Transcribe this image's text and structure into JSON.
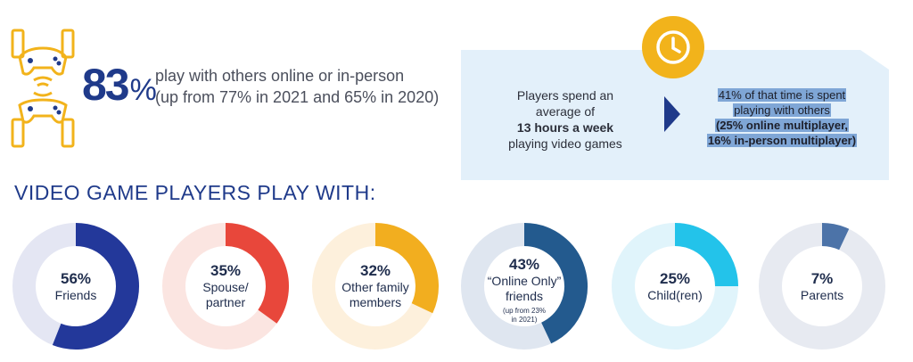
{
  "stat": {
    "value": "83",
    "unit": "%",
    "line1": "play with others online or in-person",
    "line2": "(up from 77% in 2021 and 65% in 2020)"
  },
  "callout": {
    "left": {
      "line1": "Players spend an",
      "line2": "average of",
      "line3": "13 hours a week",
      "line4": "playing video games"
    },
    "right": {
      "line1": "41% of that time is spent",
      "line2": "playing with others",
      "line3": "(25% online multiplayer,",
      "line4": "16% in-person multiplayer)"
    }
  },
  "heading": "VIDEO GAME PLAYERS PLAY WITH:",
  "colors": {
    "accent_blue": "#1f3a8a",
    "clock_yellow": "#f2b31b",
    "callout_bg": "#e3f0fa"
  },
  "chart_data": {
    "type": "donut",
    "series": [
      {
        "pct_label": "56%",
        "name_lines": [
          "Friends"
        ],
        "value": 56,
        "color": "#23389a",
        "track": "#e4e6f3"
      },
      {
        "pct_label": "35%",
        "name_lines": [
          "Spouse/",
          "partner"
        ],
        "value": 35,
        "color": "#e8473b",
        "track": "#fbe5e1"
      },
      {
        "pct_label": "32%",
        "name_lines": [
          "Other family",
          "members"
        ],
        "value": 32,
        "color": "#f2ae1f",
        "track": "#fdf0dc"
      },
      {
        "pct_label": "43%",
        "name_lines": [
          "“Online Only”",
          "friends"
        ],
        "note_lines": [
          "(up from 23%",
          "in 2021)"
        ],
        "value": 43,
        "color": "#235a8e",
        "track": "#dfe6f0"
      },
      {
        "pct_label": "25%",
        "name_lines": [
          "Child(ren)"
        ],
        "value": 25,
        "color": "#23c3ea",
        "track": "#e0f4fb"
      },
      {
        "pct_label": "7%",
        "name_lines": [
          "Parents"
        ],
        "value": 7,
        "color": "#4c73a8",
        "track": "#e7eaf1"
      }
    ]
  }
}
